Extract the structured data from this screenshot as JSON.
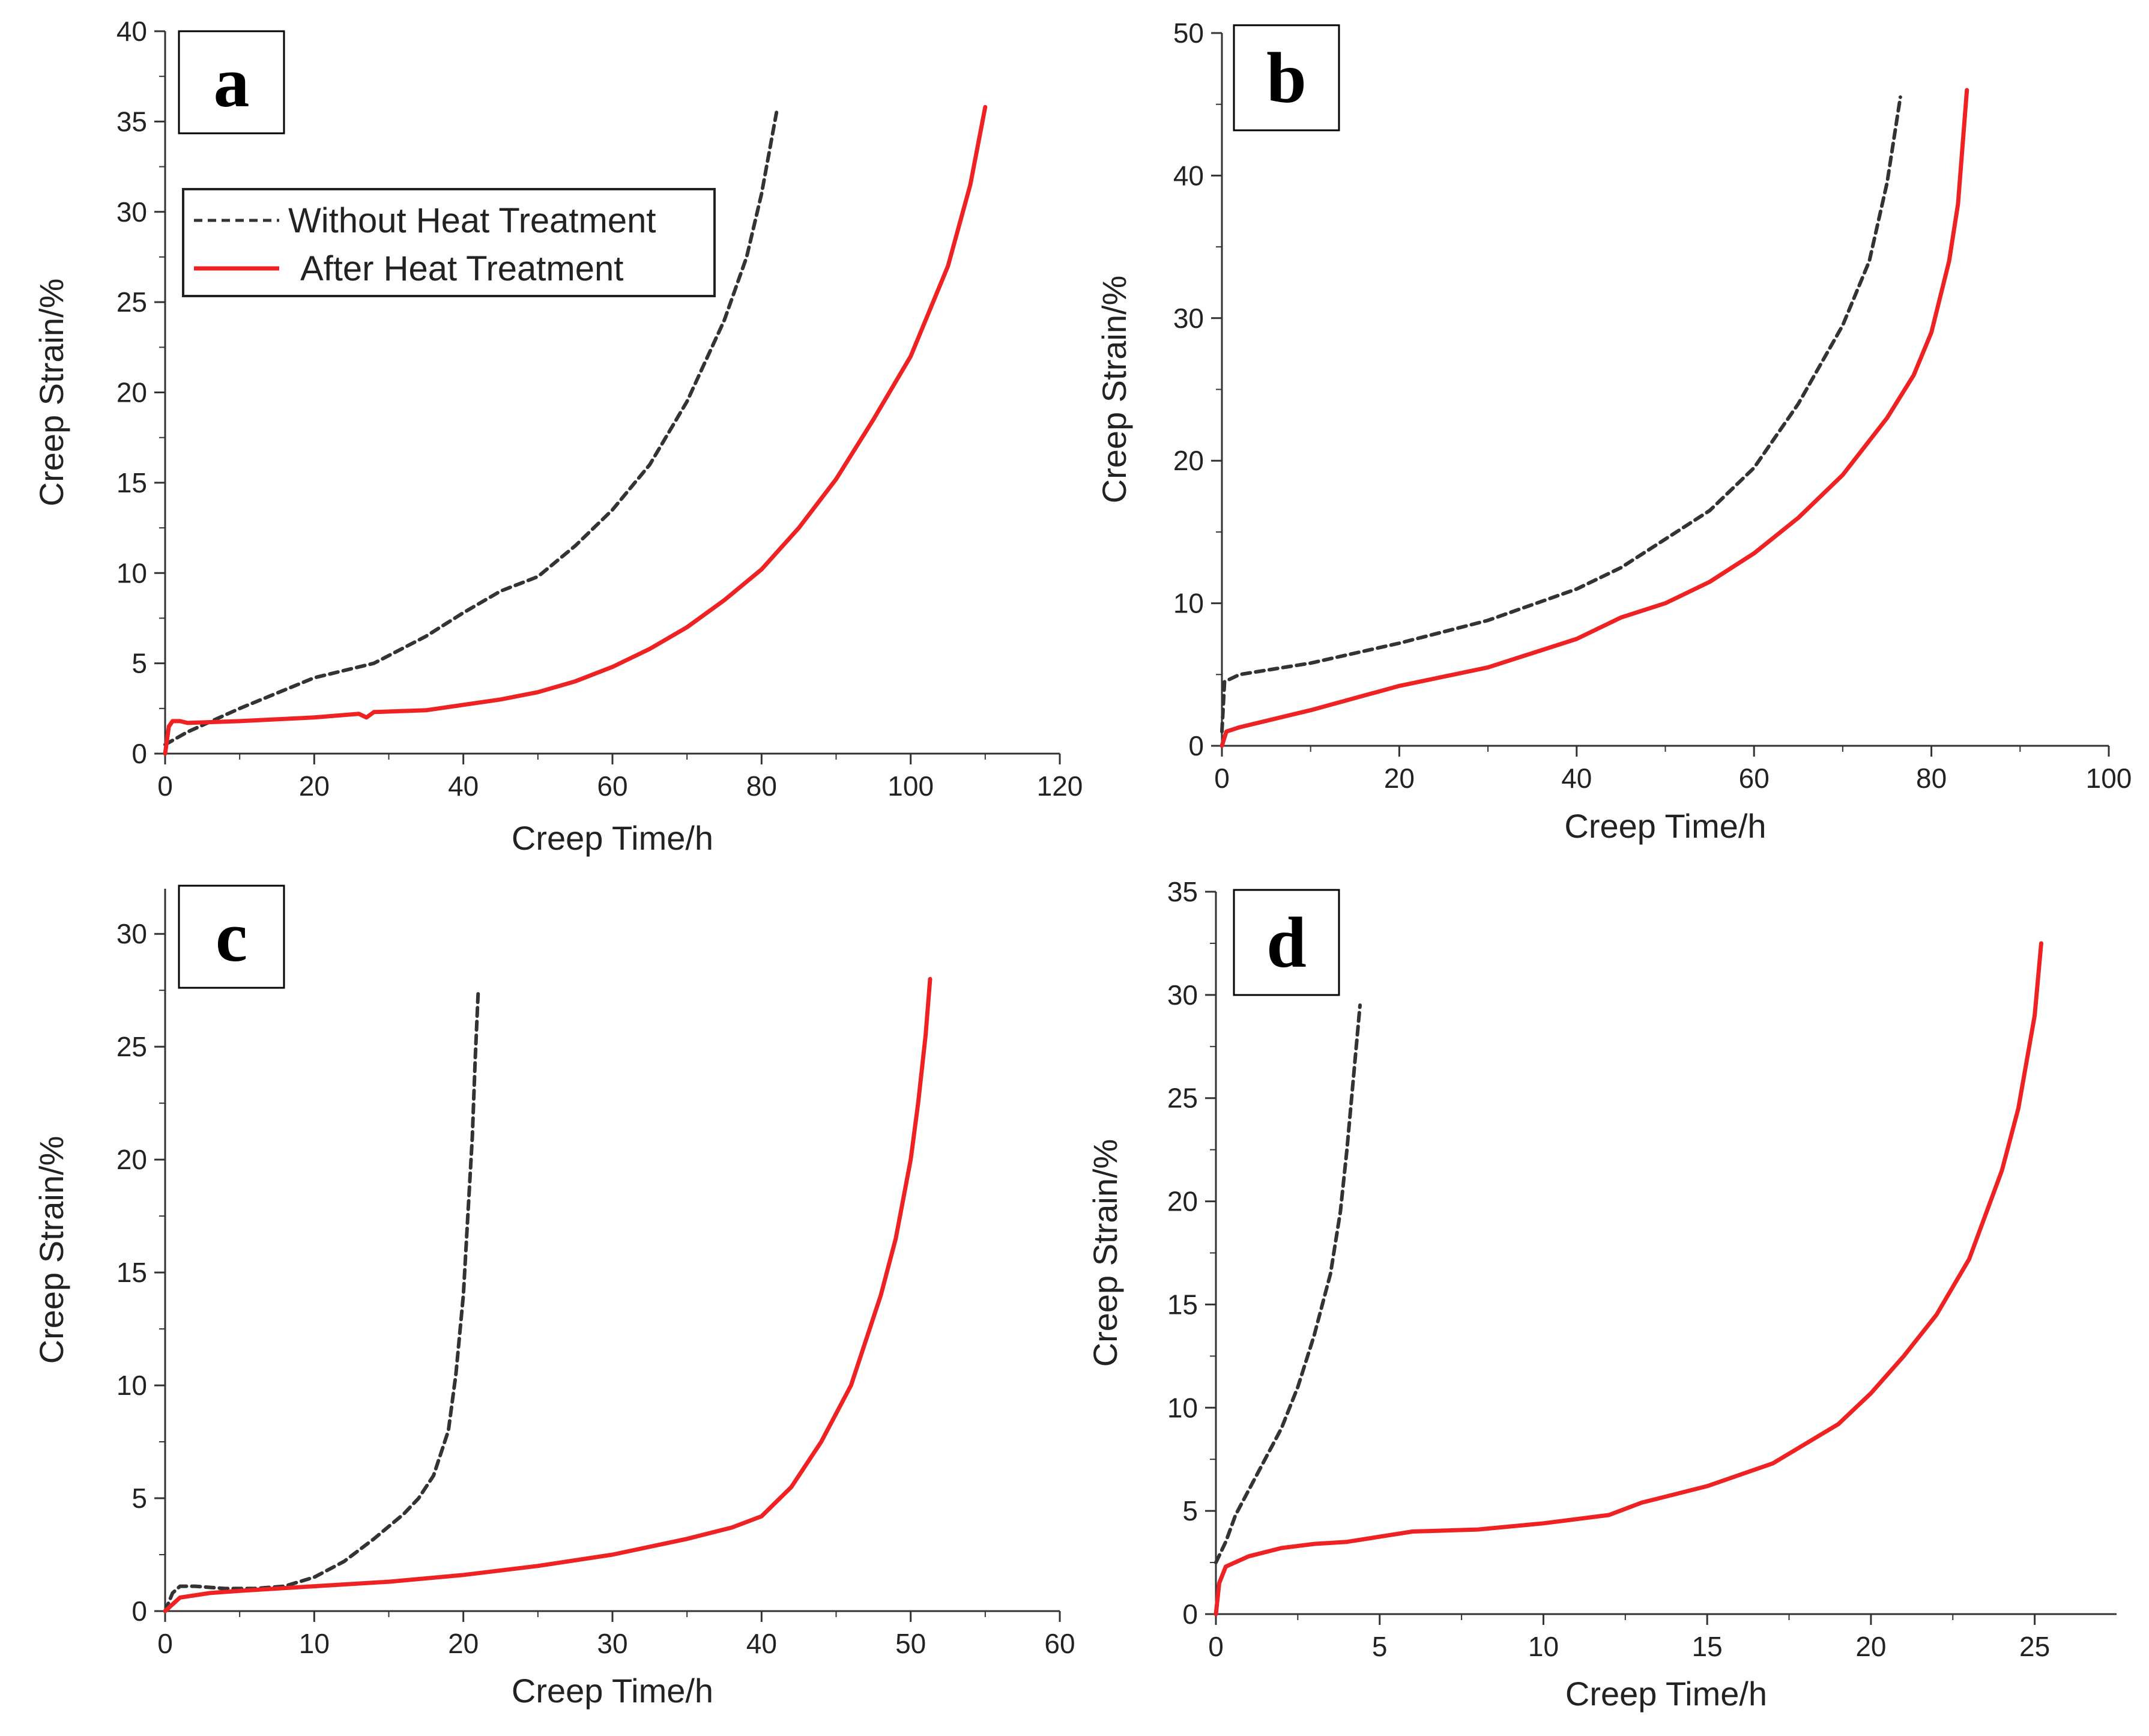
{
  "colors": {
    "without": "#333333",
    "after": "#ee2222"
  },
  "chart_data": [
    {
      "type": "line",
      "panel_label": "a",
      "xlabel": "Creep Time/h",
      "ylabel": "Creep Strain/%",
      "xlim": [
        0,
        120
      ],
      "ylim": [
        0,
        40
      ],
      "xticks": [
        0,
        20,
        40,
        60,
        80,
        100,
        120
      ],
      "yticks": [
        0,
        5,
        10,
        15,
        20,
        25,
        30,
        35,
        40
      ],
      "legend": {
        "position": "top-left",
        "entries": [
          "Without Heat Treatment",
          "After Heat Treatment"
        ]
      },
      "series": [
        {
          "name": "Without Heat Treatment",
          "style": "dashed",
          "x": [
            0,
            3,
            10,
            20,
            28,
            35,
            40,
            45,
            50,
            55,
            60,
            65,
            70,
            75,
            78,
            80,
            82
          ],
          "y": [
            0.5,
            1.2,
            2.5,
            4.2,
            5,
            6.5,
            7.8,
            9,
            9.8,
            11.5,
            13.5,
            16,
            19.5,
            24,
            27.5,
            31,
            35.5
          ]
        },
        {
          "name": "After Heat Treatment",
          "style": "solid",
          "x": [
            0,
            0.5,
            1,
            2,
            3,
            10,
            20,
            26,
            27,
            28,
            35,
            45,
            50,
            55,
            60,
            65,
            70,
            75,
            80,
            85,
            90,
            95,
            100,
            105,
            108,
            110
          ],
          "y": [
            0,
            1.5,
            1.8,
            1.8,
            1.7,
            1.8,
            2,
            2.2,
            2,
            2.3,
            2.4,
            3,
            3.4,
            4,
            4.8,
            5.8,
            7,
            8.5,
            10.2,
            12.5,
            15.2,
            18.5,
            22,
            27,
            31.5,
            35.8
          ]
        }
      ]
    },
    {
      "type": "line",
      "panel_label": "b",
      "xlabel": "Creep Time/h",
      "ylabel": "Creep Strain/%",
      "xlim": [
        0,
        100
      ],
      "ylim": [
        0,
        50
      ],
      "xticks": [
        0,
        20,
        40,
        60,
        80,
        100
      ],
      "yticks": [
        0,
        10,
        20,
        30,
        40,
        50
      ],
      "series": [
        {
          "name": "Without Heat Treatment",
          "style": "dashed",
          "x": [
            0,
            0.3,
            2,
            10,
            20,
            30,
            40,
            45,
            50,
            55,
            60,
            65,
            70,
            73,
            75,
            76.5
          ],
          "y": [
            1,
            4.5,
            5,
            5.8,
            7.2,
            8.8,
            11,
            12.5,
            14.5,
            16.5,
            19.5,
            24,
            29.5,
            34,
            39.5,
            45.5
          ]
        },
        {
          "name": "After Heat Treatment",
          "style": "solid",
          "x": [
            0,
            0.5,
            2,
            10,
            20,
            30,
            40,
            45,
            50,
            55,
            60,
            65,
            70,
            75,
            78,
            80,
            82,
            83,
            84
          ],
          "y": [
            0,
            1,
            1.3,
            2.5,
            4.2,
            5.5,
            7.5,
            9,
            10,
            11.5,
            13.5,
            16,
            19,
            23,
            26,
            29,
            34,
            38,
            46
          ]
        }
      ]
    },
    {
      "type": "line",
      "panel_label": "c",
      "xlabel": "Creep Time/h",
      "ylabel": "Creep Strain/%",
      "xlim": [
        0,
        60
      ],
      "ylim": [
        0,
        32
      ],
      "xticks": [
        0,
        10,
        20,
        30,
        40,
        50,
        60
      ],
      "yticks": [
        0,
        5,
        10,
        15,
        20,
        25,
        30
      ],
      "series": [
        {
          "name": "Without Heat Treatment",
          "style": "dashed",
          "x": [
            0,
            0.5,
            1,
            2,
            4,
            6,
            8,
            10,
            12,
            14,
            16,
            17,
            18,
            19,
            19.5,
            20,
            20.3,
            20.6,
            20.8,
            21
          ],
          "y": [
            0,
            0.8,
            1.1,
            1.1,
            1,
            1,
            1.1,
            1.5,
            2.2,
            3.2,
            4.3,
            5,
            6,
            8,
            10.5,
            14,
            17.5,
            21,
            24.5,
            27.5
          ]
        },
        {
          "name": "After Heat Treatment",
          "style": "solid",
          "x": [
            0,
            1,
            3,
            5,
            10,
            15,
            20,
            25,
            30,
            35,
            38,
            40,
            42,
            44,
            46,
            48,
            49,
            50,
            50.5,
            51,
            51.3
          ],
          "y": [
            0,
            0.6,
            0.8,
            0.9,
            1.1,
            1.3,
            1.6,
            2,
            2.5,
            3.2,
            3.7,
            4.2,
            5.5,
            7.5,
            10,
            14,
            16.5,
            20,
            22.5,
            25.5,
            28
          ]
        }
      ]
    },
    {
      "type": "line",
      "panel_label": "d",
      "xlabel": "Creep Time/h",
      "ylabel": "Creep Strain/%",
      "xlim": [
        0,
        27.5
      ],
      "ylim": [
        0,
        35
      ],
      "xticks": [
        0,
        5,
        10,
        15,
        20,
        25
      ],
      "yticks": [
        0,
        5,
        10,
        15,
        20,
        25,
        30,
        35
      ],
      "series": [
        {
          "name": "Without Heat Treatment",
          "style": "dashed",
          "x": [
            0,
            0.3,
            0.6,
            1,
            1.5,
            2,
            2.5,
            3,
            3.5,
            3.8,
            4,
            4.2,
            4.4
          ],
          "y": [
            2.5,
            3.5,
            4.8,
            6,
            7.5,
            9,
            11,
            13.5,
            16.5,
            19.5,
            22.5,
            26,
            29.5
          ]
        },
        {
          "name": "After Heat Treatment",
          "style": "solid",
          "x": [
            0,
            0.1,
            0.3,
            1,
            2,
            3,
            4,
            6,
            8,
            10,
            12,
            12.5,
            13,
            15,
            17,
            19,
            20,
            21,
            22,
            23,
            24,
            24.5,
            25,
            25.2
          ],
          "y": [
            0,
            1.5,
            2.3,
            2.8,
            3.2,
            3.4,
            3.5,
            4,
            4.1,
            4.4,
            4.8,
            5.1,
            5.4,
            6.2,
            7.3,
            9.2,
            10.7,
            12.5,
            14.5,
            17.2,
            21.5,
            24.5,
            29,
            32.5
          ]
        }
      ]
    }
  ]
}
